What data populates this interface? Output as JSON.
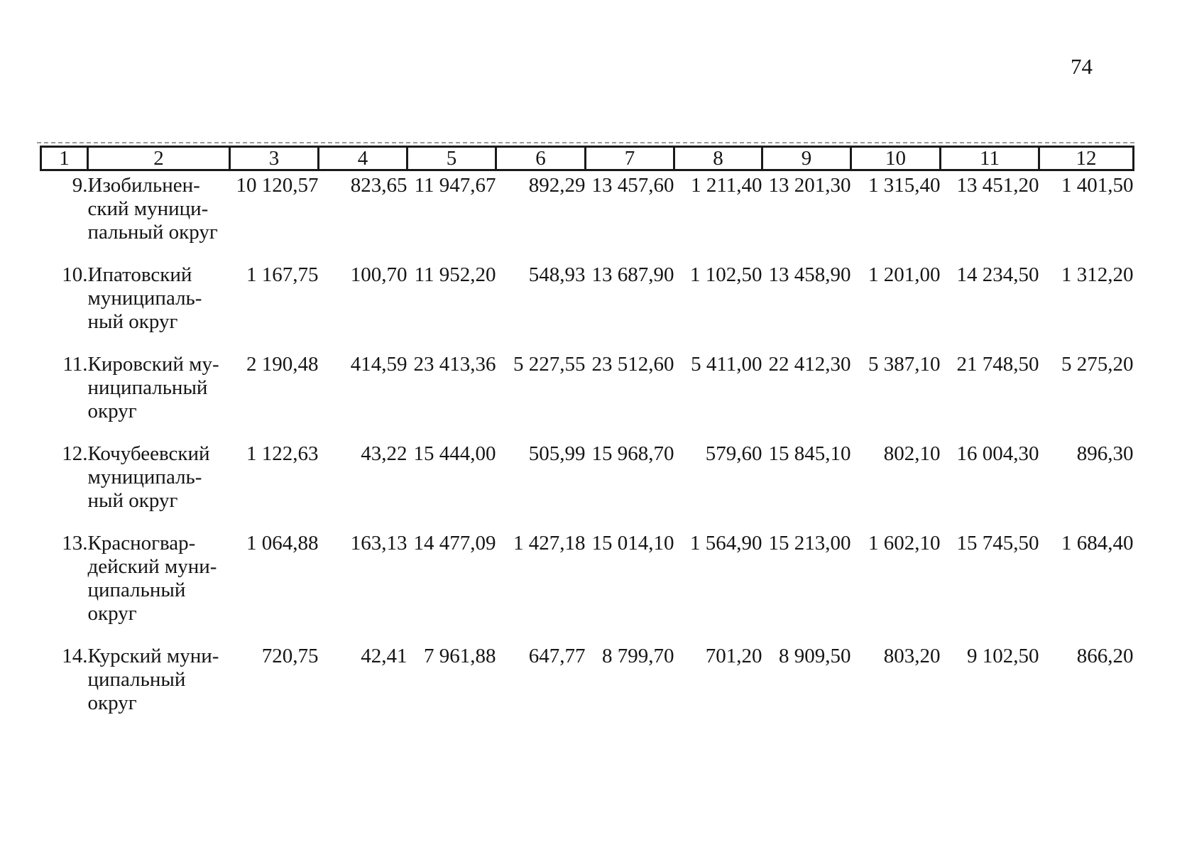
{
  "page": {
    "number": "74"
  },
  "table": {
    "header_columns": [
      "1",
      "2",
      "3",
      "4",
      "5",
      "6",
      "7",
      "8",
      "9",
      "10",
      "11",
      "12"
    ],
    "rows": [
      {
        "num": "9.",
        "name": "Изобильнен-\nский муници-\nпальный округ",
        "values": [
          "10 120,57",
          "823,65",
          "11 947,67",
          "892,29",
          "13 457,60",
          "1 211,40",
          "13 201,30",
          "1 315,40",
          "13 451,20",
          "1 401,50"
        ]
      },
      {
        "num": "10.",
        "name": "Ипатовский\nмуниципаль-\nный округ",
        "values": [
          "1 167,75",
          "100,70",
          "11 952,20",
          "548,93",
          "13 687,90",
          "1 102,50",
          "13 458,90",
          "1 201,00",
          "14 234,50",
          "1 312,20"
        ]
      },
      {
        "num": "11.",
        "name": "Кировский му-\nниципальный\nокруг",
        "values": [
          "2 190,48",
          "414,59",
          "23 413,36",
          "5 227,55",
          "23 512,60",
          "5 411,00",
          "22 412,30",
          "5 387,10",
          "21 748,50",
          "5 275,20"
        ]
      },
      {
        "num": "12.",
        "name": "Кочубеевский\nмуниципаль-\nный округ",
        "values": [
          "1 122,63",
          "43,22",
          "15 444,00",
          "505,99",
          "15 968,70",
          "579,60",
          "15 845,10",
          "802,10",
          "16 004,30",
          "896,30"
        ]
      },
      {
        "num": "13.",
        "name": "Красногвар-\nдейский муни-\nципальный\nокруг",
        "values": [
          "1 064,88",
          "163,13",
          "14 477,09",
          "1 427,18",
          "15 014,10",
          "1 564,90",
          "15 213,00",
          "1 602,10",
          "15 745,50",
          "1 684,40"
        ]
      },
      {
        "num": "14.",
        "name": "Курский муни-\nципальный\nокруг",
        "values": [
          "720,75",
          "42,41",
          "7 961,88",
          "647,77",
          "8 799,70",
          "701,20",
          "8 909,50",
          "803,20",
          "9 102,50",
          "866,20"
        ]
      }
    ]
  }
}
